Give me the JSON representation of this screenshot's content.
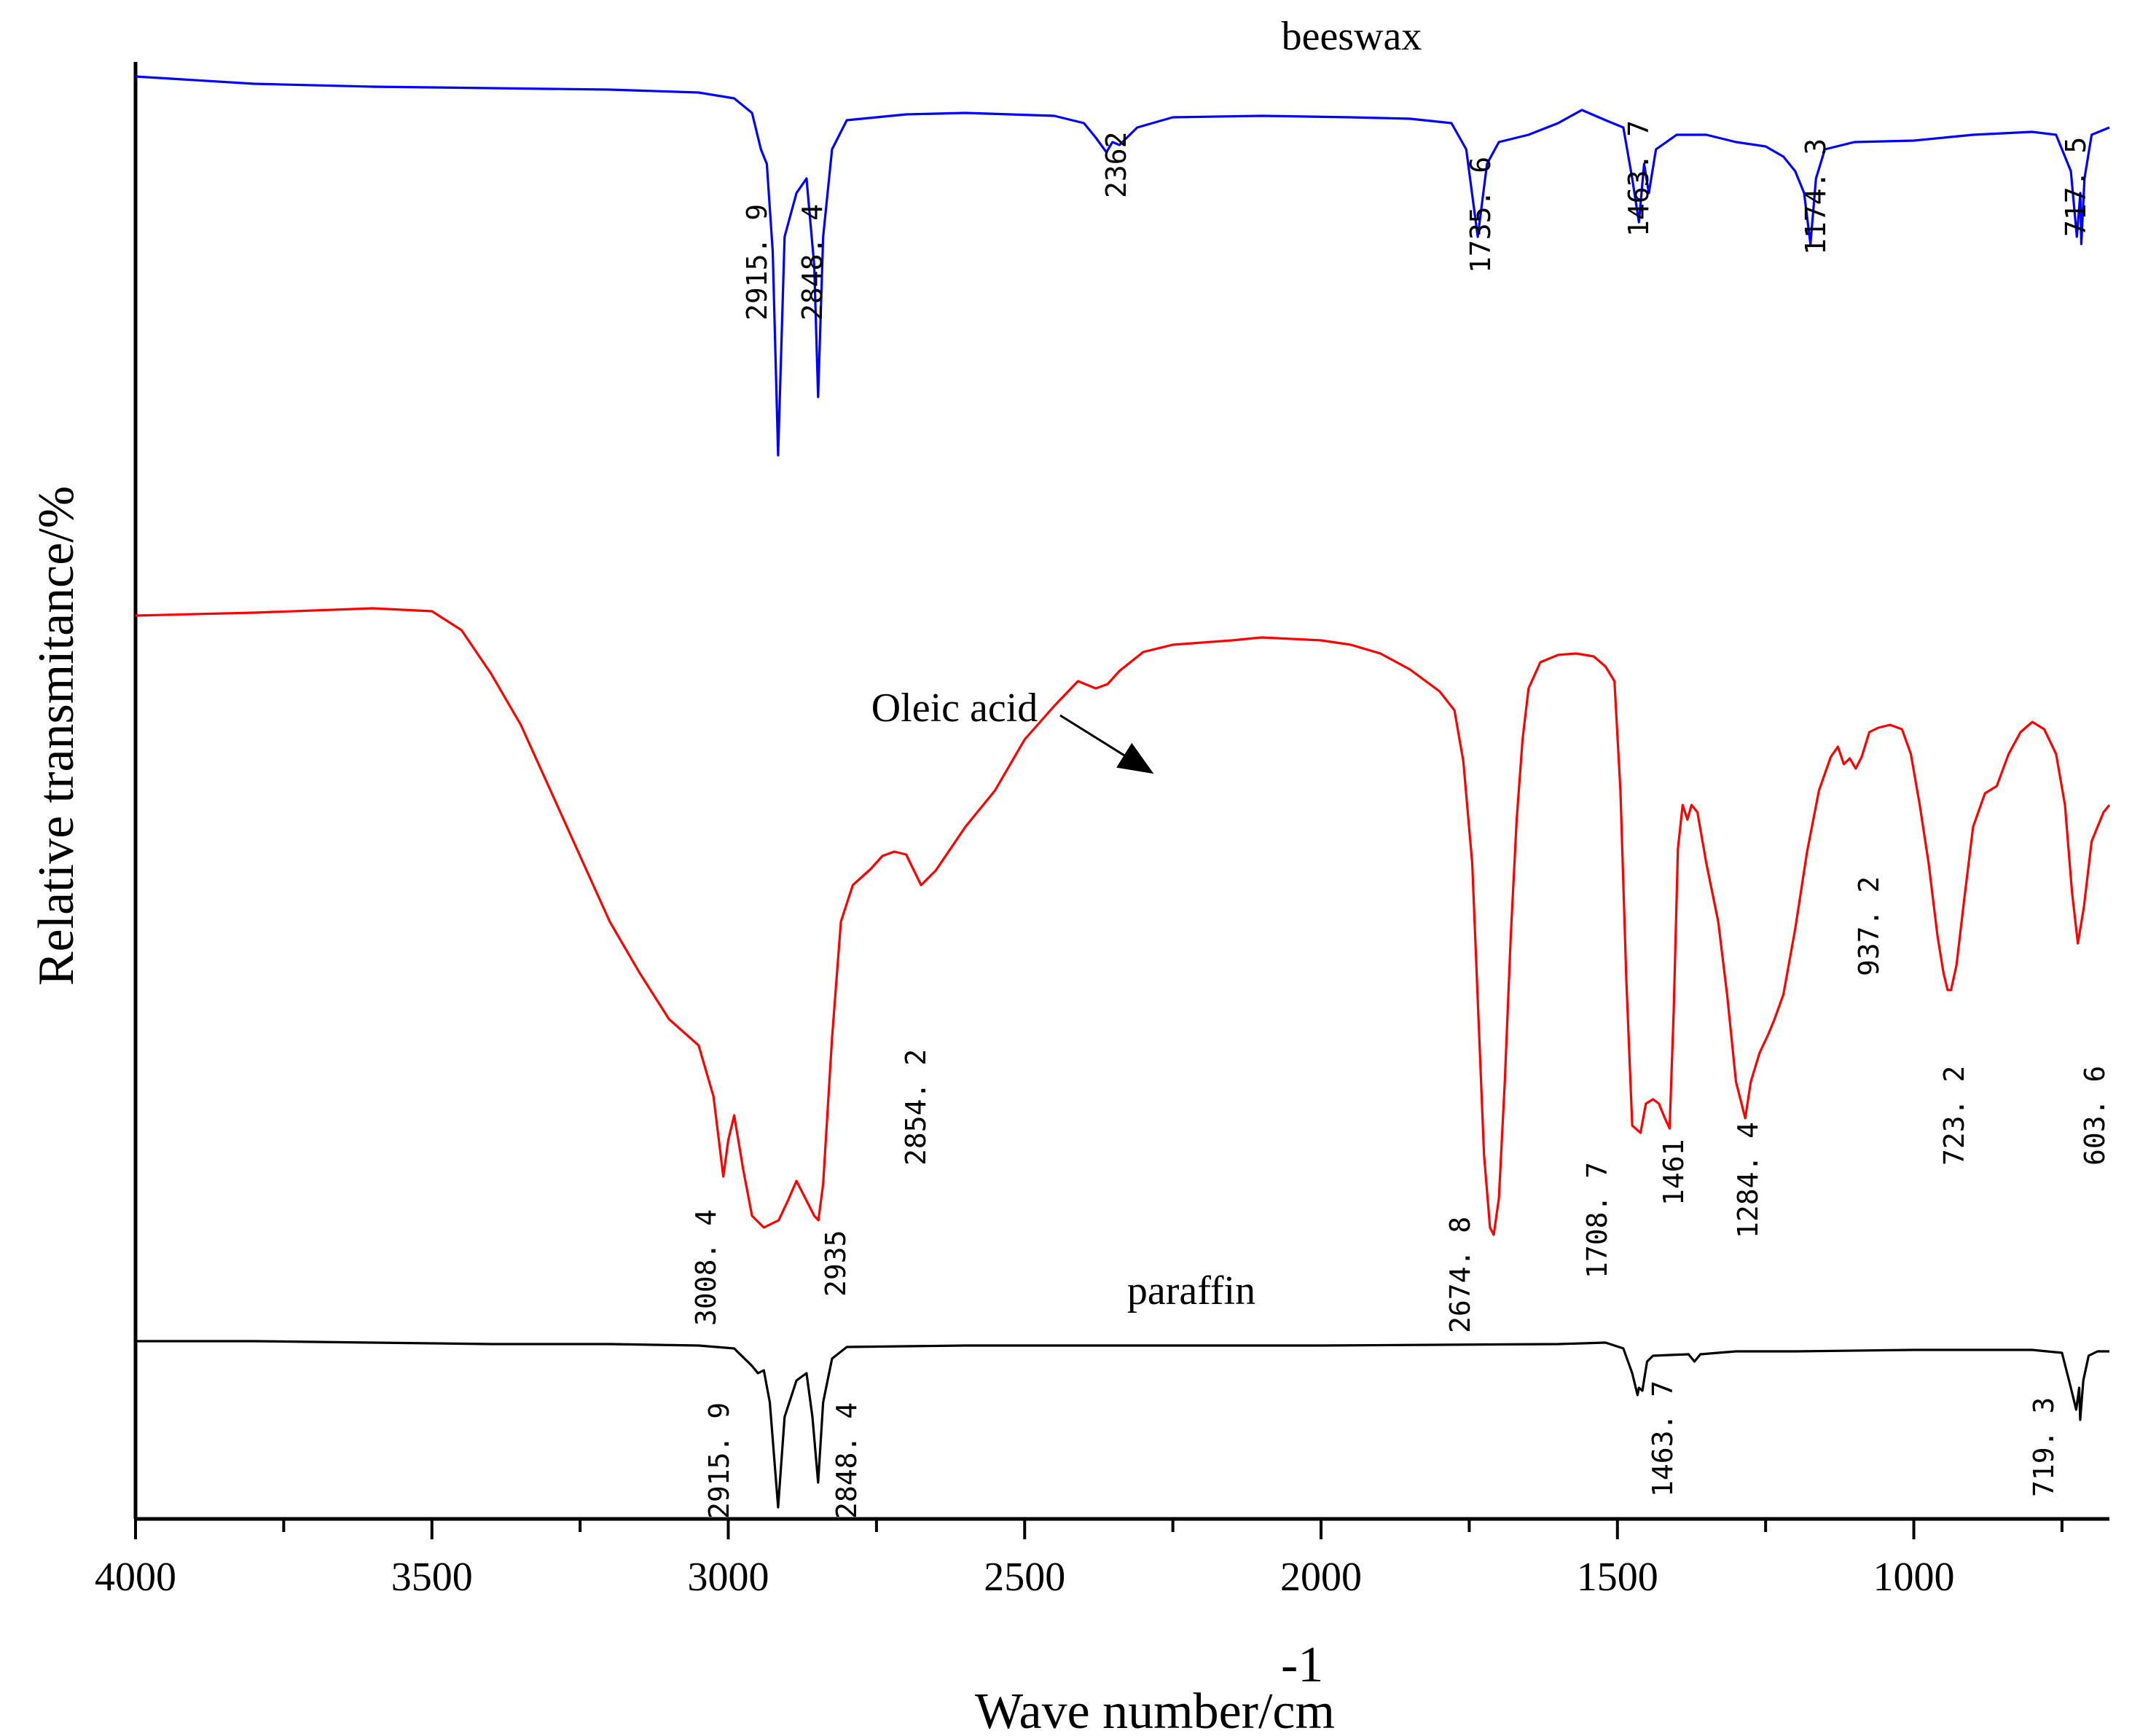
{
  "chart_data": {
    "type": "line",
    "title": "",
    "xlabel": "Wave number/cm",
    "xlabel_superscript": "-1",
    "ylabel": "Relative transmitance/%",
    "xlim": [
      4000,
      670
    ],
    "x_ticks": [
      4000,
      3500,
      3000,
      2500,
      2000,
      1500,
      1000
    ],
    "x_tick_labels": [
      "4000",
      "3500",
      "3000",
      "2500",
      "2000",
      "1500",
      "1000"
    ],
    "x_minor_step": 250,
    "y_ticks": [],
    "grid": false,
    "series": [
      {
        "name": "beeswax",
        "color": "#0000ff",
        "baseline": 98,
        "points": [
          [
            4000,
            99
          ],
          [
            3800,
            98.5
          ],
          [
            3600,
            98.3
          ],
          [
            3400,
            98.2
          ],
          [
            3200,
            98.1
          ],
          [
            3050,
            97.9
          ],
          [
            2990,
            97.5
          ],
          [
            2960,
            96.5
          ],
          [
            2945,
            94
          ],
          [
            2935,
            93
          ],
          [
            2925,
            87
          ],
          [
            2915.9,
            73
          ],
          [
            2905,
            88
          ],
          [
            2885,
            91
          ],
          [
            2868,
            92
          ],
          [
            2855,
            86
          ],
          [
            2848.4,
            77
          ],
          [
            2840,
            88
          ],
          [
            2825,
            94
          ],
          [
            2800,
            96
          ],
          [
            2700,
            96.4
          ],
          [
            2600,
            96.5
          ],
          [
            2450,
            96.3
          ],
          [
            2400,
            95.8
          ],
          [
            2380,
            94.8
          ],
          [
            2362,
            93.8
          ],
          [
            2352,
            94.5
          ],
          [
            2340,
            94.3
          ],
          [
            2310,
            95.5
          ],
          [
            2250,
            96.2
          ],
          [
            2100,
            96.3
          ],
          [
            1950,
            96.2
          ],
          [
            1850,
            96.1
          ],
          [
            1780,
            95.8
          ],
          [
            1755,
            94
          ],
          [
            1735.6,
            88
          ],
          [
            1720,
            93
          ],
          [
            1700,
            94.5
          ],
          [
            1650,
            95
          ],
          [
            1600,
            95.8
          ],
          [
            1560,
            96.7
          ],
          [
            1520,
            96
          ],
          [
            1490,
            95.5
          ],
          [
            1475,
            92
          ],
          [
            1463.7,
            89
          ],
          [
            1455,
            93
          ],
          [
            1447,
            91
          ],
          [
            1435,
            94
          ],
          [
            1400,
            95
          ],
          [
            1350,
            95
          ],
          [
            1300,
            94.5
          ],
          [
            1250,
            94.2
          ],
          [
            1220,
            93.5
          ],
          [
            1200,
            92.5
          ],
          [
            1185,
            91
          ],
          [
            1174.3,
            87.5
          ],
          [
            1165,
            92
          ],
          [
            1150,
            94
          ],
          [
            1100,
            94.5
          ],
          [
            1000,
            94.6
          ],
          [
            900,
            95
          ],
          [
            800,
            95.2
          ],
          [
            760,
            95
          ],
          [
            735,
            92.5
          ],
          [
            725,
            88
          ],
          [
            719,
            91
          ],
          [
            717.5,
            87.5
          ],
          [
            712,
            92
          ],
          [
            700,
            95
          ],
          [
            670,
            95.5
          ]
        ],
        "peak_labels": [
          "2915. 9",
          "2848. 4",
          "2362",
          "1735. 6",
          "1463. 7",
          "1174. 3",
          "717. 5"
        ]
      },
      {
        "name": "Oleic acid",
        "color": "#ff0000",
        "points": [
          [
            4000,
            62
          ],
          [
            3800,
            62.2
          ],
          [
            3600,
            62.5
          ],
          [
            3500,
            62.3
          ],
          [
            3450,
            61
          ],
          [
            3400,
            58
          ],
          [
            3350,
            54.5
          ],
          [
            3300,
            50
          ],
          [
            3250,
            45.5
          ],
          [
            3200,
            41
          ],
          [
            3150,
            37.5
          ],
          [
            3100,
            34.3
          ],
          [
            3050,
            32.5
          ],
          [
            3025,
            29
          ],
          [
            3008.4,
            23.5
          ],
          [
            3000,
            26
          ],
          [
            2990,
            27.7
          ],
          [
            2975,
            24
          ],
          [
            2960,
            20.8
          ],
          [
            2940,
            20
          ],
          [
            2915,
            20.5
          ],
          [
            2900,
            21.8
          ],
          [
            2885,
            23.2
          ],
          [
            2870,
            22
          ],
          [
            2855,
            20.8
          ],
          [
            2848,
            20.5
          ],
          [
            2840,
            23
          ],
          [
            2825,
            33
          ],
          [
            2810,
            41
          ],
          [
            2790,
            43.5
          ],
          [
            2760,
            44.6
          ],
          [
            2740,
            45.5
          ],
          [
            2720,
            45.8
          ],
          [
            2700,
            45.6
          ],
          [
            2674.8,
            43.5
          ],
          [
            2650,
            44.5
          ],
          [
            2600,
            47.5
          ],
          [
            2550,
            50
          ],
          [
            2500,
            53.5
          ],
          [
            2450,
            55.8
          ],
          [
            2410,
            57.5
          ],
          [
            2380,
            57
          ],
          [
            2360,
            57.3
          ],
          [
            2340,
            58.2
          ],
          [
            2300,
            59.5
          ],
          [
            2250,
            60
          ],
          [
            2150,
            60.3
          ],
          [
            2100,
            60.5
          ],
          [
            2050,
            60.4
          ],
          [
            2000,
            60.3
          ],
          [
            1950,
            60
          ],
          [
            1900,
            59.4
          ],
          [
            1850,
            58.3
          ],
          [
            1800,
            56.8
          ],
          [
            1775,
            55.5
          ],
          [
            1760,
            52
          ],
          [
            1745,
            45
          ],
          [
            1735,
            35
          ],
          [
            1725,
            25
          ],
          [
            1715,
            20
          ],
          [
            1708.7,
            19.5
          ],
          [
            1700,
            22
          ],
          [
            1690,
            30
          ],
          [
            1680,
            40
          ],
          [
            1670,
            48
          ],
          [
            1660,
            53.5
          ],
          [
            1650,
            57
          ],
          [
            1630,
            58.8
          ],
          [
            1600,
            59.3
          ],
          [
            1570,
            59.4
          ],
          [
            1540,
            59.2
          ],
          [
            1520,
            58.5
          ],
          [
            1505,
            57.5
          ],
          [
            1495,
            50
          ],
          [
            1485,
            37
          ],
          [
            1475,
            27
          ],
          [
            1461,
            26.5
          ],
          [
            1452,
            28.5
          ],
          [
            1440,
            28.8
          ],
          [
            1430,
            28.5
          ],
          [
            1420,
            27.5
          ],
          [
            1412,
            26.8
          ],
          [
            1405,
            35
          ],
          [
            1398,
            46
          ],
          [
            1390,
            49
          ],
          [
            1382,
            48
          ],
          [
            1375,
            49
          ],
          [
            1365,
            48.5
          ],
          [
            1350,
            45
          ],
          [
            1330,
            41
          ],
          [
            1315,
            36
          ],
          [
            1300,
            30
          ],
          [
            1284.4,
            27.5
          ],
          [
            1275,
            30
          ],
          [
            1260,
            32
          ],
          [
            1245,
            33.3
          ],
          [
            1235,
            34.3
          ],
          [
            1220,
            36
          ],
          [
            1200,
            40.5
          ],
          [
            1180,
            45.8
          ],
          [
            1160,
            50
          ],
          [
            1140,
            52.3
          ],
          [
            1128,
            53
          ],
          [
            1118,
            51.8
          ],
          [
            1108,
            52.2
          ],
          [
            1098,
            51.5
          ],
          [
            1088,
            52.3
          ],
          [
            1075,
            54
          ],
          [
            1060,
            54.3
          ],
          [
            1040,
            54.5
          ],
          [
            1020,
            54.2
          ],
          [
            1005,
            52.5
          ],
          [
            990,
            49
          ],
          [
            975,
            45
          ],
          [
            960,
            40
          ],
          [
            950,
            37.5
          ],
          [
            943,
            36.3
          ],
          [
            937.2,
            36.3
          ],
          [
            928,
            38
          ],
          [
            915,
            42.5
          ],
          [
            900,
            47.5
          ],
          [
            880,
            49.8
          ],
          [
            860,
            50.3
          ],
          [
            840,
            52.5
          ],
          [
            820,
            54
          ],
          [
            800,
            54.7
          ],
          [
            780,
            54.2
          ],
          [
            760,
            52.5
          ],
          [
            745,
            49
          ],
          [
            733,
            43
          ],
          [
            723.2,
            39.5
          ],
          [
            713,
            42
          ],
          [
            700,
            46.5
          ],
          [
            680,
            48.5
          ],
          [
            670,
            49
          ]
        ],
        "peak_labels": [
          "3008. 4",
          "2935",
          "2854. 2",
          "2674. 8",
          "1708. 7",
          "1461",
          "1284. 4",
          "937. 2",
          "723. 2",
          "603. 6"
        ],
        "annotation": "Oleic acid"
      },
      {
        "name": "paraffin",
        "color": "#000000",
        "points": [
          [
            4000,
            12.2
          ],
          [
            3800,
            12.2
          ],
          [
            3600,
            12.1
          ],
          [
            3400,
            12
          ],
          [
            3200,
            12
          ],
          [
            3050,
            11.9
          ],
          [
            2990,
            11.7
          ],
          [
            2960,
            10.5
          ],
          [
            2950,
            10
          ],
          [
            2940,
            10.2
          ],
          [
            2930,
            8
          ],
          [
            2915.9,
            0.8
          ],
          [
            2905,
            7
          ],
          [
            2885,
            9.5
          ],
          [
            2868,
            10
          ],
          [
            2858,
            7
          ],
          [
            2848.4,
            2.5
          ],
          [
            2840,
            8
          ],
          [
            2825,
            11
          ],
          [
            2800,
            11.8
          ],
          [
            2600,
            11.9
          ],
          [
            2400,
            11.9
          ],
          [
            2200,
            11.9
          ],
          [
            2000,
            11.9
          ],
          [
            1800,
            11.95
          ],
          [
            1600,
            12
          ],
          [
            1520,
            12.1
          ],
          [
            1490,
            11.7
          ],
          [
            1475,
            10
          ],
          [
            1466,
            8.5
          ],
          [
            1463.7,
            9
          ],
          [
            1458,
            8.8
          ],
          [
            1450,
            10.8
          ],
          [
            1440,
            11.2
          ],
          [
            1380,
            11.3
          ],
          [
            1370,
            10.8
          ],
          [
            1360,
            11.3
          ],
          [
            1300,
            11.5
          ],
          [
            1200,
            11.5
          ],
          [
            1000,
            11.6
          ],
          [
            800,
            11.6
          ],
          [
            750,
            11.4
          ],
          [
            735,
            9
          ],
          [
            726,
            7.5
          ],
          [
            721,
            9
          ],
          [
            719.3,
            6.8
          ],
          [
            714,
            9.5
          ],
          [
            705,
            11.2
          ],
          [
            690,
            11.5
          ],
          [
            670,
            11.5
          ]
        ],
        "peak_labels": [
          "2915. 9",
          "2848. 4",
          "1463. 7",
          "719. 3"
        ]
      }
    ]
  }
}
